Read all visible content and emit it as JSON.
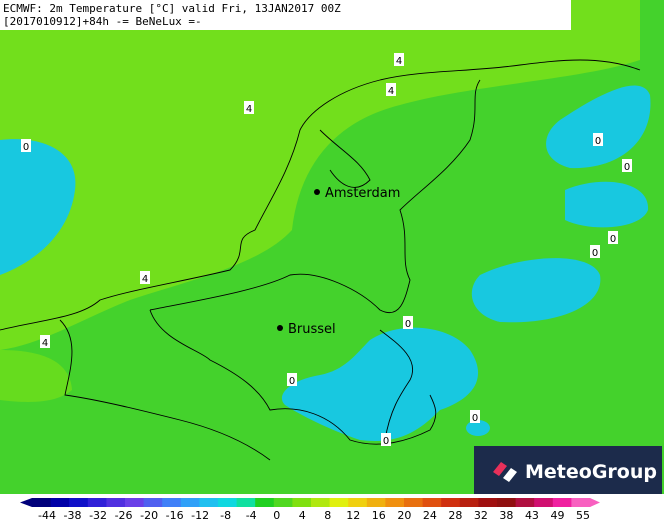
{
  "header": {
    "line1": "ECMWF: 2m Temperature [°C] valid Fri, 13JAN2017 00Z",
    "line2": "[2017010912]+84h -= BeNeLux =-"
  },
  "cities": [
    {
      "name": "Amsterdam"
    },
    {
      "name": "Brussel"
    }
  ],
  "contour_labels": [
    4,
    4,
    4,
    0,
    0,
    0,
    0,
    0,
    4,
    4,
    0,
    0,
    0,
    0
  ],
  "colorbar": {
    "ticks": [
      -44,
      -38,
      -32,
      -26,
      -20,
      -16,
      -12,
      -8,
      -4,
      0,
      4,
      8,
      12,
      16,
      20,
      24,
      28,
      32,
      38,
      43,
      49,
      55
    ],
    "colors": [
      "#00007a",
      "#0000a8",
      "#1010c8",
      "#3020d8",
      "#5030e0",
      "#6a40e8",
      "#5060f0",
      "#4080f8",
      "#30a0f8",
      "#20c0f0",
      "#10d8e0",
      "#10e0a0",
      "#20d020",
      "#50d820",
      "#80e010",
      "#b0e810",
      "#e0f010",
      "#f0d010",
      "#f0b010",
      "#f09010",
      "#e87010",
      "#e05010",
      "#d03010",
      "#b82010",
      "#a01010",
      "#901010",
      "#b01040",
      "#d01070",
      "#f020a0",
      "#f860c0"
    ]
  },
  "logo": "MeteoGroup"
}
